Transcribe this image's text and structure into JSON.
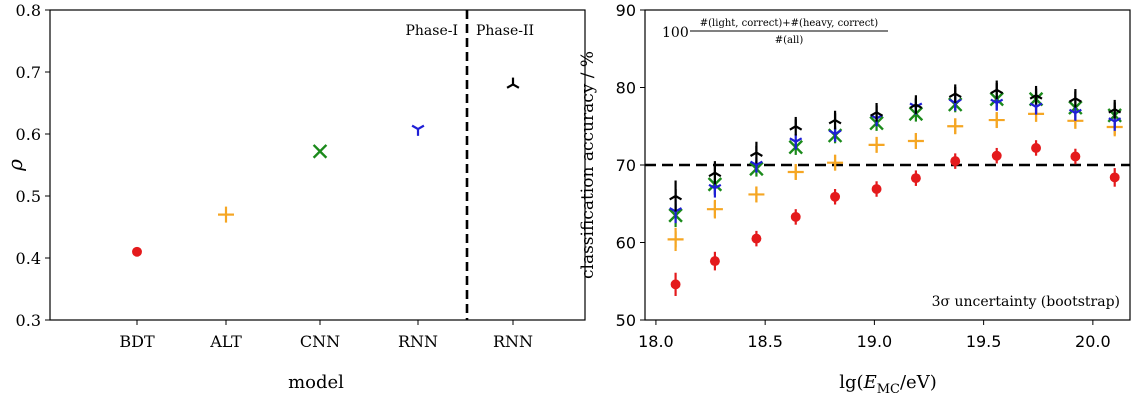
{
  "chart_data": [
    {
      "type": "scatter",
      "title": "",
      "xlabel": "model",
      "ylabel": "ρ",
      "categories": [
        "BDT",
        "ALT",
        "CNN",
        "RNN",
        "RNN"
      ],
      "ylim": [
        0.3,
        0.8
      ],
      "yticks": [
        "0.3",
        "0.4",
        "0.5",
        "0.6",
        "0.7",
        "0.8"
      ],
      "grid": false,
      "points": [
        {
          "category": "BDT",
          "value": 0.41,
          "marker": "circle",
          "color": "#e41a1c"
        },
        {
          "category": "ALT",
          "value": 0.47,
          "marker": "plus",
          "color": "#f5a623"
        },
        {
          "category": "CNN",
          "value": 0.572,
          "marker": "x",
          "color": "#1b8a1b"
        },
        {
          "category": "RNN",
          "value": 0.608,
          "marker": "tri-down",
          "color": "#1f1fd6"
        },
        {
          "category": "RNN",
          "value": 0.68,
          "marker": "tri-up",
          "color": "#000000"
        }
      ],
      "annotations": [
        {
          "text": "Phase-I",
          "side": "left-of-divider"
        },
        {
          "text": "Phase-II",
          "side": "right-of-divider"
        }
      ],
      "divider_between_categories": [
        3,
        4
      ]
    },
    {
      "type": "scatter",
      "title": "",
      "xlabel": "lg(E_MC/eV)",
      "xlabel_parts": {
        "lg": "lg(",
        "E": "E",
        "sub": "MC",
        "rest": "/eV)"
      },
      "ylabel": "classification accuracy / %",
      "xlim": [
        17.95,
        20.17
      ],
      "ylim": [
        50,
        90
      ],
      "xticks": [
        "18.0",
        "18.5",
        "19.0",
        "19.5",
        "20.0"
      ],
      "yticks": [
        "50",
        "60",
        "70",
        "80",
        "90"
      ],
      "grid": false,
      "hline": 70,
      "formula": {
        "prefix": "100",
        "numerator": "#(light, correct)+#(heavy, correct)",
        "denominator": "#(all)"
      },
      "note": "3σ uncertainty (bootstrap)",
      "x": [
        18.09,
        18.27,
        18.46,
        18.64,
        18.82,
        19.01,
        19.19,
        19.37,
        19.56,
        19.74,
        19.92,
        20.1
      ],
      "series": [
        {
          "marker": "circle",
          "color": "#e41a1c",
          "values": [
            54.6,
            57.6,
            60.5,
            63.3,
            65.9,
            66.9,
            68.3,
            70.5,
            71.2,
            72.2,
            71.1,
            68.4
          ],
          "errors": [
            1.5,
            1.2,
            1.0,
            1.0,
            1.0,
            1.0,
            1.0,
            1.0,
            1.0,
            1.0,
            1.0,
            1.2
          ]
        },
        {
          "marker": "plus",
          "color": "#f5a623",
          "values": [
            60.4,
            64.3,
            66.2,
            69.1,
            70.3,
            72.6,
            73.1,
            75.0,
            75.8,
            76.6,
            75.7,
            74.9
          ],
          "errors": [
            1.5,
            1.2,
            1.0,
            1.0,
            1.0,
            1.0,
            1.0,
            1.0,
            1.0,
            1.0,
            1.0,
            1.2
          ]
        },
        {
          "marker": "x",
          "color": "#1b8a1b",
          "values": [
            63.5,
            67.5,
            69.5,
            72.3,
            73.8,
            75.4,
            76.6,
            77.8,
            78.5,
            78.5,
            77.4,
            76.4
          ],
          "errors": [
            1.5,
            1.2,
            1.0,
            1.0,
            1.0,
            1.0,
            1.0,
            1.0,
            1.0,
            1.0,
            1.0,
            1.2
          ]
        },
        {
          "marker": "tri-down",
          "color": "#1f1fd6",
          "values": [
            64.0,
            67.0,
            70.0,
            73.0,
            74.0,
            76.0,
            77.5,
            78.0,
            78.0,
            77.5,
            76.7,
            75.6
          ],
          "errors": [
            1.5,
            1.2,
            1.0,
            1.0,
            1.0,
            1.0,
            1.0,
            1.0,
            1.0,
            1.0,
            1.0,
            1.2
          ]
        },
        {
          "marker": "tri-up",
          "color": "#000000",
          "values": [
            66.0,
            69.0,
            71.6,
            75.0,
            75.8,
            76.8,
            77.8,
            79.2,
            79.7,
            79.0,
            78.6,
            77.2
          ],
          "errors": [
            2.0,
            1.5,
            1.4,
            1.2,
            1.2,
            1.2,
            1.2,
            1.2,
            1.2,
            1.2,
            1.2,
            1.2
          ]
        }
      ]
    }
  ]
}
